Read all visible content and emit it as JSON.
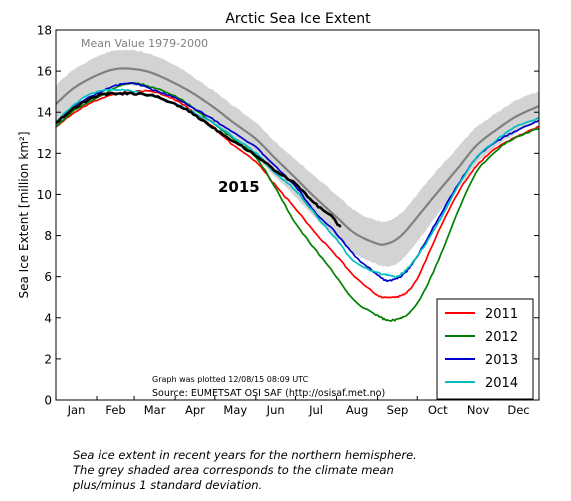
{
  "chart_data": {
    "type": "line",
    "title": "Arctic Sea Ice Extent",
    "ylabel": "Sea Ice Extent [million km²]",
    "xlabel": "",
    "ylim": [
      0,
      18
    ],
    "yticks": [
      0,
      2,
      4,
      6,
      8,
      10,
      12,
      14,
      16,
      18
    ],
    "xlim": [
      1,
      366
    ],
    "x_unit": "day of year",
    "months": [
      "Jan",
      "Feb",
      "Mar",
      "Apr",
      "May",
      "Jun",
      "Jul",
      "Aug",
      "Sep",
      "Oct",
      "Nov",
      "Dec"
    ],
    "month_starts": [
      1,
      32,
      60,
      91,
      121,
      152,
      182,
      213,
      244,
      274,
      305,
      335,
      366
    ],
    "grid": false,
    "legend_position": "bottom-right",
    "mean_label": "Mean Value 1979-2000",
    "mean_color": "#808080",
    "band_color": "#d3d3d3",
    "current_year_label": "2015",
    "plot_note": "Graph was plotted 12/08/15 08:09 UTC",
    "source": "Source: EUMETSAT OSI SAF (http://osisaf.met.no)",
    "x": [
      1,
      15,
      32,
      46,
      60,
      74,
      91,
      105,
      121,
      135,
      152,
      166,
      182,
      196,
      213,
      227,
      244,
      251,
      258,
      265,
      274,
      288,
      305,
      319,
      335,
      349,
      366
    ],
    "mean": [
      14.4,
      15.2,
      15.8,
      16.1,
      16.1,
      15.9,
      15.4,
      14.9,
      14.2,
      13.5,
      12.7,
      11.8,
      10.8,
      9.9,
      8.9,
      8.1,
      7.6,
      7.6,
      7.8,
      8.2,
      8.9,
      10.0,
      11.3,
      12.4,
      13.2,
      13.8,
      14.3
    ],
    "band_upper": [
      15.3,
      16.1,
      16.7,
      17.0,
      17.0,
      16.8,
      16.3,
      15.7,
      15.0,
      14.3,
      13.5,
      12.6,
      11.7,
      10.9,
      10.0,
      9.2,
      8.7,
      8.7,
      8.9,
      9.3,
      10.0,
      11.1,
      12.3,
      13.3,
      14.0,
      14.6,
      15.0
    ],
    "band_lower": [
      13.6,
      14.4,
      15.0,
      15.3,
      15.3,
      15.1,
      14.6,
      14.1,
      13.4,
      12.7,
      11.8,
      10.9,
      9.9,
      8.9,
      7.9,
      7.1,
      6.6,
      6.5,
      6.6,
      7.0,
      7.7,
      8.9,
      10.3,
      11.5,
      12.4,
      13.0,
      13.6
    ],
    "series": [
      {
        "name": "2011",
        "color": "#ff0000",
        "values": [
          13.3,
          14.0,
          14.6,
          14.9,
          15.0,
          15.0,
          14.6,
          14.0,
          13.2,
          12.4,
          11.6,
          10.5,
          9.3,
          8.2,
          7.0,
          6.0,
          5.1,
          5.0,
          5.0,
          5.2,
          5.9,
          7.9,
          10.1,
          11.4,
          12.3,
          12.8,
          13.3
        ]
      },
      {
        "name": "2012",
        "color": "#008000",
        "values": [
          13.3,
          14.1,
          14.7,
          15.2,
          15.4,
          15.2,
          14.8,
          14.2,
          13.4,
          12.7,
          11.8,
          10.4,
          8.6,
          7.4,
          6.0,
          4.8,
          4.1,
          3.9,
          3.9,
          4.1,
          4.7,
          6.5,
          9.2,
          11.1,
          12.2,
          12.8,
          13.2
        ]
      },
      {
        "name": "2013",
        "color": "#0000cc",
        "values": [
          13.4,
          14.3,
          14.9,
          15.3,
          15.4,
          15.1,
          14.7,
          14.2,
          13.6,
          13.0,
          12.3,
          11.4,
          10.4,
          9.2,
          8.1,
          7.0,
          6.1,
          5.8,
          5.9,
          6.2,
          7.0,
          8.6,
          10.5,
          11.8,
          12.6,
          13.1,
          13.6
        ]
      },
      {
        "name": "2014",
        "color": "#00bfbf",
        "values": [
          13.5,
          14.4,
          15.0,
          15.1,
          15.0,
          14.8,
          14.4,
          14.0,
          13.4,
          12.8,
          12.0,
          11.1,
          10.2,
          9.1,
          7.8,
          6.7,
          6.2,
          6.1,
          6.0,
          6.3,
          7.0,
          8.4,
          10.4,
          11.8,
          12.7,
          13.3,
          13.7
        ]
      }
    ],
    "current": {
      "name": "2015",
      "color": "#000000",
      "x": [
        1,
        15,
        32,
        46,
        60,
        74,
        91,
        105,
        121,
        135,
        152,
        166,
        182,
        196,
        208,
        216
      ],
      "values": [
        13.5,
        14.2,
        14.8,
        14.9,
        14.9,
        14.8,
        14.4,
        13.9,
        13.2,
        12.6,
        11.9,
        11.2,
        10.5,
        9.6,
        9.0,
        8.4
      ]
    }
  },
  "caption": {
    "line1": "Sea ice extent in recent years for the northern hemisphere.",
    "line2": "The grey shaded area corresponds to the climate mean",
    "line3": "plus/minus 1 standard deviation."
  }
}
